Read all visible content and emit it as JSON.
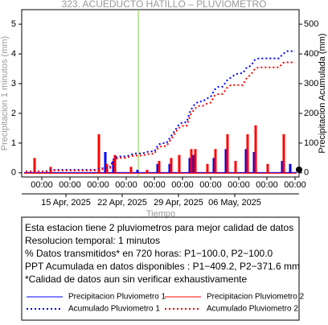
{
  "chart_data": {
    "type": "line",
    "title": "323. ACUEDUCTO HATILLO – PLUVIOMETRO",
    "y_label": "Precipitacion 1 minutos (mm)",
    "y2_label": "Precipitacion Acumulada (mm)",
    "x_label": "Tiempo",
    "x": [
      "2025-04-10 00:00",
      "2025-04-10 12:00",
      "2025-04-11 00:00",
      "2025-04-11 12:00",
      "2025-04-12 00:00",
      "2025-04-12 12:00",
      "2025-04-13 00:00",
      "2025-04-13 12:00",
      "2025-04-14 00:00",
      "2025-04-14 12:00",
      "2025-04-15 00:00",
      "2025-04-15 12:00",
      "2025-04-16 00:00",
      "2025-04-16 12:00",
      "2025-04-17 00:00",
      "2025-04-17 12:00",
      "2025-04-18 00:00",
      "2025-04-18 12:00",
      "2025-04-19 00:00",
      "2025-04-19 12:00",
      "2025-04-20 00:00",
      "2025-04-20 12:00",
      "2025-04-21 00:00",
      "2025-04-21 12:00",
      "2025-04-22 00:00",
      "2025-04-22 12:00",
      "2025-04-23 00:00",
      "2025-04-23 12:00",
      "2025-04-24 00:00",
      "2025-04-24 12:00",
      "2025-04-25 00:00",
      "2025-04-25 12:00",
      "2025-04-26 00:00",
      "2025-04-26 12:00",
      "2025-04-27 00:00",
      "2025-04-27 12:00",
      "2025-04-28 00:00",
      "2025-04-28 12:00",
      "2025-04-29 00:00",
      "2025-04-29 12:00",
      "2025-04-30 00:00",
      "2025-04-30 12:00",
      "2025-05-01 00:00",
      "2025-05-01 12:00",
      "2025-05-02 00:00",
      "2025-05-02 12:00",
      "2025-05-03 00:00",
      "2025-05-03 12:00",
      "2025-05-04 00:00",
      "2025-05-04 12:00",
      "2025-05-05 00:00",
      "2025-05-05 12:00",
      "2025-05-06 00:00",
      "2025-05-06 12:00",
      "2025-05-07 00:00",
      "2025-05-07 12:00",
      "2025-05-08 00:00",
      "2025-05-08 12:00",
      "2025-05-09 00:00",
      "2025-05-09 12:00",
      "2025-05-10 00:00",
      "2025-05-10 12:00",
      "2025-05-11 00:00",
      "2025-05-11 12:00",
      "2025-05-12 00:00",
      "2025-05-12 12:00",
      "2025-05-13 00:00",
      "2025-05-13 12:00"
    ],
    "series": [
      {
        "name": "Precipitacion Pluviometro 1",
        "color": "#0000ff",
        "style": "bars",
        "values": [
          0,
          0,
          0,
          0,
          0,
          0,
          0,
          0,
          0,
          0,
          0,
          0,
          0,
          0,
          0,
          0,
          0,
          0,
          0,
          0,
          0.7,
          0,
          0.4,
          0,
          0,
          0,
          0,
          0,
          0.1,
          0,
          0,
          0,
          0,
          0.3,
          0,
          0,
          0.3,
          0,
          0,
          0,
          0,
          0.5,
          0.6,
          0,
          0,
          0,
          0,
          0.5,
          0,
          0,
          0.8,
          0,
          0,
          0,
          0,
          0.8,
          0,
          0.7,
          0,
          0,
          0,
          0,
          0,
          0,
          0.4,
          0,
          0.3,
          0
        ]
      },
      {
        "name": "Precipitacion Pluviometro 2",
        "color": "#ff0000",
        "style": "bars",
        "values": [
          0,
          0,
          0.5,
          0,
          0,
          0,
          0.2,
          0,
          0,
          0,
          0,
          0,
          0,
          0,
          0,
          0,
          0,
          0,
          1.3,
          0,
          0.3,
          0,
          0.6,
          0,
          0,
          0,
          0.2,
          0,
          0,
          0,
          0.1,
          0,
          0,
          0.4,
          0,
          0,
          0.5,
          0,
          0.6,
          0,
          0,
          0.8,
          0.8,
          0,
          0,
          0.3,
          0,
          0.8,
          0,
          0,
          1.3,
          0,
          0.4,
          0,
          0,
          1.3,
          0,
          1.6,
          0,
          0,
          0.3,
          0,
          0,
          0,
          1.3,
          0,
          0,
          0
        ]
      },
      {
        "name": "Acumulado Pluviometro 1",
        "color": "#0000ff",
        "style": "dotted",
        "axis": "y2",
        "values": [
          5,
          5,
          5,
          5,
          5,
          5,
          10,
          10,
          10,
          10,
          10,
          10,
          10,
          10,
          10,
          10,
          10,
          10,
          12,
          15,
          15,
          20,
          50,
          55,
          55,
          55,
          60,
          65,
          65,
          65,
          70,
          72,
          72,
          95,
          100,
          100,
          120,
          140,
          160,
          170,
          170,
          210,
          230,
          240,
          240,
          250,
          255,
          280,
          290,
          290,
          310,
          320,
          330,
          335,
          335,
          355,
          360,
          380,
          385,
          385,
          385,
          385,
          385,
          385,
          400,
          409.2,
          409.2,
          409.2
        ]
      },
      {
        "name": "Acumulado Pluviometro 2",
        "color": "#ff0000",
        "style": "dotted",
        "axis": "y2",
        "values": [
          4,
          4,
          4,
          4,
          4,
          4,
          8,
          8,
          8,
          8,
          8,
          8,
          8,
          8,
          8,
          8,
          8,
          8,
          10,
          12,
          12,
          16,
          45,
          50,
          50,
          50,
          55,
          58,
          58,
          58,
          62,
          64,
          64,
          85,
          90,
          90,
          110,
          130,
          150,
          158,
          158,
          195,
          215,
          225,
          225,
          232,
          236,
          260,
          265,
          265,
          285,
          295,
          295,
          295,
          295,
          320,
          330,
          350,
          355,
          355,
          355,
          355,
          355,
          355,
          370,
          371.6,
          371.6,
          371.6
        ]
      }
    ],
    "xlim": [
      "2025-04-09 12:00",
      "2025-05-14 00:00"
    ],
    "xticks": [
      {
        "value": "2025-04-12 00:00",
        "label": "00:00"
      },
      {
        "value": "2025-04-15 12:00",
        "label": "00:00"
      },
      {
        "value": "2025-04-19 00:00",
        "label": "00:00"
      },
      {
        "value": "2025-04-22 12:00",
        "label": "00:00"
      },
      {
        "value": "2025-04-26 00:00",
        "label": "00:00"
      },
      {
        "value": "2025-04-29 12:00",
        "label": "00:00"
      },
      {
        "value": "2025-05-03 00:00",
        "label": "00:00"
      },
      {
        "value": "2025-05-06 12:00",
        "label": "00:00"
      },
      {
        "value": "2025-05-10 00:00",
        "label": "00:00"
      },
      {
        "value": "2025-05-13 12:00",
        "label": "00:00"
      }
    ],
    "date_ticks": [
      {
        "value": "2025-04-15 00:00",
        "label": "15 Apr, 2025"
      },
      {
        "value": "2025-04-22 00:00",
        "label": "22 Apr, 2025"
      },
      {
        "value": "2025-04-29 00:00",
        "label": "29 Apr, 2025"
      },
      {
        "value": "2025-05-06 00:00",
        "label": "06 May, 2025"
      }
    ],
    "ylim": [
      -0.14,
      5.49
    ],
    "yticks": [
      0,
      1,
      2,
      3,
      4,
      5
    ],
    "y2lim": [
      -14,
      549
    ],
    "y2ticks": [
      0,
      100,
      200,
      300,
      400,
      500
    ],
    "vline": {
      "x": "2025-04-24 00:00",
      "color": "#7fd13b"
    },
    "notes": [
      "Esta estacion tiene 2 pluviometros para mejor calidad de datos",
      "Resolucion temporal: 1 minutos",
      "% Datos transmitidos* en 720 horas: P1−100.0, P2−100.0",
      "PPT Acumulada en datos disponibles : P1−409.2, P2−371.6 mm",
      "*Calidad de datos aun sin verificar exhaustivamente"
    ]
  }
}
